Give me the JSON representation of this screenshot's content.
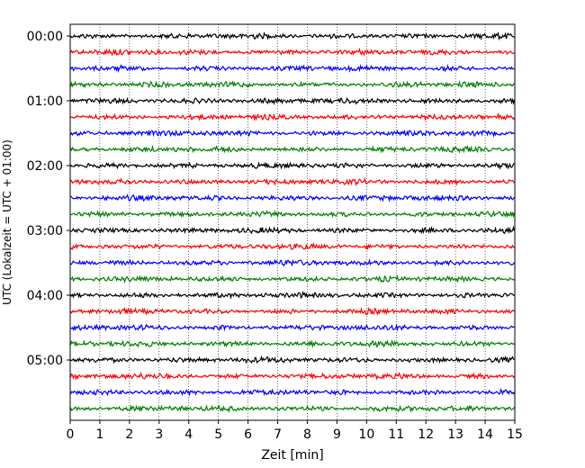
{
  "chart_data": {
    "type": "line",
    "title": "",
    "xlabel": "Zeit  [min]",
    "ylabel": "UTC (Lokalzeit = UTC + 01:00)",
    "xlim": [
      0,
      15
    ],
    "x_ticks": [
      0,
      1,
      2,
      3,
      4,
      5,
      6,
      7,
      8,
      9,
      10,
      11,
      12,
      13,
      14,
      15
    ],
    "x_grid": "dotted vertical at every minute",
    "y_ticks": [
      {
        "label": "00:00",
        "trace_index": 0
      },
      {
        "label": "01:00",
        "trace_index": 4
      },
      {
        "label": "02:00",
        "trace_index": 8
      },
      {
        "label": "03:00",
        "trace_index": 12
      },
      {
        "label": "04:00",
        "trace_index": 16
      },
      {
        "label": "05:00",
        "trace_index": 20
      }
    ],
    "trace_colors_cycle": [
      "#000000",
      "#ff0000",
      "#0000ff",
      "#008000"
    ],
    "traces_count": 24,
    "trace_interval_min": 15,
    "legend": "none"
  }
}
